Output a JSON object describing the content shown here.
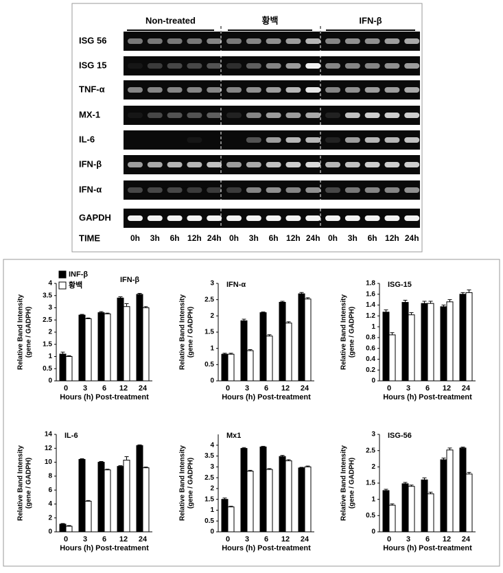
{
  "gel": {
    "groups": [
      "Non-treated",
      "황백",
      "IFN-β"
    ],
    "genes": [
      "ISG 56",
      "ISG 15",
      "TNF-α",
      "MX-1",
      "IL-6",
      "IFN-β",
      "IFN-α",
      "GAPDH"
    ],
    "time_label": "TIME",
    "lanes": [
      "0h",
      "3h",
      "6h",
      "12h",
      "24h",
      "0h",
      "3h",
      "6h",
      "12h",
      "24h",
      "0h",
      "3h",
      "6h",
      "12h",
      "24h"
    ]
  },
  "chart_data": [
    {
      "type": "bar",
      "title": "IFN-β",
      "x_label": "Hours (h) Post-treatment",
      "y_label": [
        "Relative Band Intensity",
        "(gene / GADPH)"
      ],
      "categories": [
        "0",
        "3",
        "6",
        "12",
        "24"
      ],
      "legend": "upper left",
      "series": [
        {
          "name": "INF-β",
          "color": "#000000",
          "values": [
            1.1,
            2.7,
            2.8,
            3.4,
            3.55
          ],
          "errors": [
            0.08,
            0.03,
            0.04,
            0.05,
            0.04
          ]
        },
        {
          "name": "황백",
          "color": "#ffffff",
          "values": [
            1.0,
            2.55,
            2.75,
            3.05,
            3.0
          ],
          "errors": [
            0.03,
            0.03,
            0.03,
            0.12,
            0.05
          ]
        }
      ],
      "ylim": [
        0,
        4
      ],
      "yticks": [
        0,
        0.5,
        1,
        1.5,
        2,
        2.5,
        3,
        3.5,
        4
      ]
    },
    {
      "type": "bar",
      "title": "IFN-α",
      "x_label": "Hours (h) Post-treatment",
      "y_label": [
        "Relative Band Intensity",
        "(gene / GADPH)"
      ],
      "categories": [
        "0",
        "3",
        "6",
        "12",
        "24"
      ],
      "series": [
        {
          "color": "#000000",
          "values": [
            0.82,
            1.85,
            2.1,
            2.42,
            2.68
          ],
          "errors": [
            0.03,
            0.05,
            0.02,
            0.03,
            0.04
          ]
        },
        {
          "color": "#ffffff",
          "values": [
            0.82,
            0.93,
            1.38,
            1.78,
            2.52
          ],
          "errors": [
            0.03,
            0.03,
            0.04,
            0.04,
            0.04
          ]
        }
      ],
      "ylim": [
        0,
        3
      ],
      "yticks": [
        0,
        0.5,
        1,
        1.5,
        2,
        2.5,
        3
      ]
    },
    {
      "type": "bar",
      "title": "ISG-15",
      "x_label": "Hours (h) Post-treatment",
      "y_label": [
        "Relative Band Intensity",
        "(gene / GADPH)"
      ],
      "categories": [
        "0",
        "3",
        "6",
        "12",
        "24"
      ],
      "series": [
        {
          "color": "#000000",
          "values": [
            1.27,
            1.45,
            1.43,
            1.37,
            1.6
          ],
          "errors": [
            0.04,
            0.04,
            0.04,
            0.03,
            0.03
          ]
        },
        {
          "color": "#ffffff",
          "values": [
            0.85,
            1.22,
            1.43,
            1.46,
            1.63
          ],
          "errors": [
            0.04,
            0.04,
            0.04,
            0.04,
            0.05
          ]
        }
      ],
      "ylim": [
        0,
        1.8
      ],
      "yticks": [
        0,
        0.2,
        0.4,
        0.6,
        0.8,
        1,
        1.2,
        1.4,
        1.6,
        1.8
      ]
    },
    {
      "type": "bar",
      "title": "IL-6",
      "x_label": "Hours (h) Post-treatment",
      "y_label": [
        "Relative Band Intensity",
        "(gene / GADPH)"
      ],
      "categories": [
        "0",
        "3",
        "6",
        "12",
        "24"
      ],
      "series": [
        {
          "color": "#000000",
          "values": [
            1.1,
            10.4,
            10.0,
            9.4,
            12.4
          ],
          "errors": [
            0.1,
            0.1,
            0.1,
            0.1,
            0.1
          ]
        },
        {
          "color": "#ffffff",
          "values": [
            0.8,
            4.4,
            8.9,
            10.3,
            9.2
          ],
          "errors": [
            0.1,
            0.1,
            0.1,
            0.5,
            0.1
          ]
        }
      ],
      "ylim": [
        0,
        14
      ],
      "yticks": [
        0,
        2,
        4,
        6,
        8,
        10,
        12,
        14
      ]
    },
    {
      "type": "bar",
      "title": "Mx1",
      "x_label": "Hours (h) Post-treatment",
      "y_label": [
        "Relative Band Intensity",
        "(gene / GADPH)"
      ],
      "categories": [
        "0",
        "3",
        "6",
        "12",
        "24"
      ],
      "series": [
        {
          "color": "#000000",
          "values": [
            1.5,
            3.85,
            3.92,
            3.48,
            2.95
          ],
          "errors": [
            0.06,
            0.04,
            0.03,
            0.05,
            0.03
          ]
        },
        {
          "color": "#ffffff",
          "values": [
            1.15,
            2.8,
            2.88,
            3.28,
            3.0
          ],
          "errors": [
            0.03,
            0.04,
            0.04,
            0.05,
            0.04
          ]
        }
      ],
      "ylim": [
        0,
        4.5
      ],
      "yticks": [
        0,
        0.5,
        1,
        1.5,
        2,
        2.5,
        3,
        3.5,
        4
      ]
    },
    {
      "type": "bar",
      "title": "ISG-56",
      "x_label": "Hours (h) Post-treatment",
      "y_label": [
        "Relative Band Intensity",
        "(gene / GADPH)"
      ],
      "categories": [
        "0",
        "3",
        "6",
        "12",
        "24"
      ],
      "series": [
        {
          "color": "#000000",
          "values": [
            1.27,
            1.48,
            1.6,
            2.22,
            2.58
          ],
          "errors": [
            0.04,
            0.04,
            0.06,
            0.05,
            0.03
          ]
        },
        {
          "color": "#ffffff",
          "values": [
            0.82,
            1.4,
            1.17,
            2.52,
            1.78
          ],
          "errors": [
            0.04,
            0.04,
            0.05,
            0.06,
            0.05
          ]
        }
      ],
      "ylim": [
        0,
        3
      ],
      "yticks": [
        0,
        0.5,
        1,
        1.5,
        2,
        2.5,
        3
      ]
    }
  ]
}
